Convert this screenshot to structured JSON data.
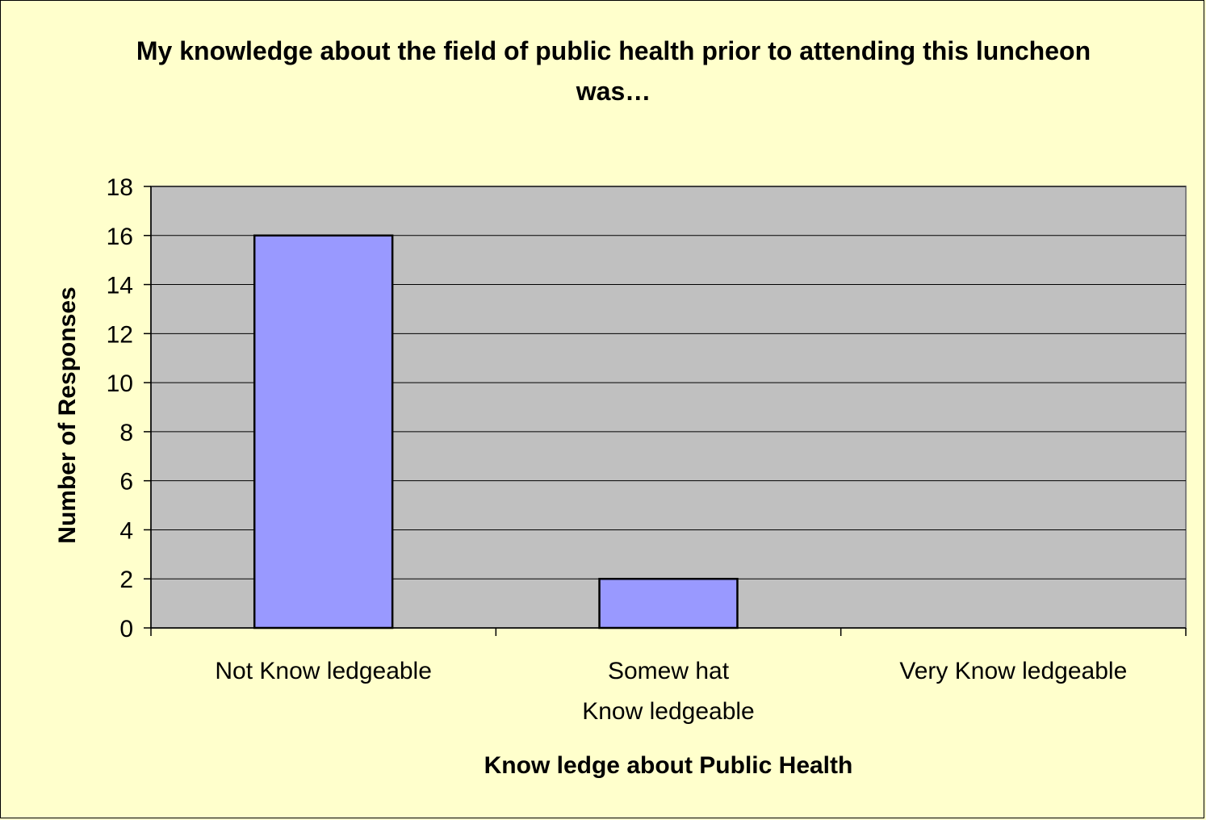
{
  "chart_data": {
    "type": "bar",
    "title": "My knowledge about the field of public health prior to attending this luncheon was…",
    "categories": [
      [
        "Not Know ledgeable"
      ],
      [
        "Somew hat",
        "Know ledgeable"
      ],
      [
        "Very Know ledgeable"
      ]
    ],
    "values": [
      16,
      2,
      0
    ],
    "xlabel": "Know ledge about Public Health",
    "ylabel": "Number of Responses",
    "ylim": [
      0,
      18
    ],
    "yticks": [
      0,
      2,
      4,
      6,
      8,
      10,
      12,
      14,
      16,
      18
    ],
    "grid": true,
    "legend": "none",
    "colors": {
      "bar": "#9999ff",
      "plot_area": "#c0c0c0",
      "background": "#ffffcc"
    }
  }
}
